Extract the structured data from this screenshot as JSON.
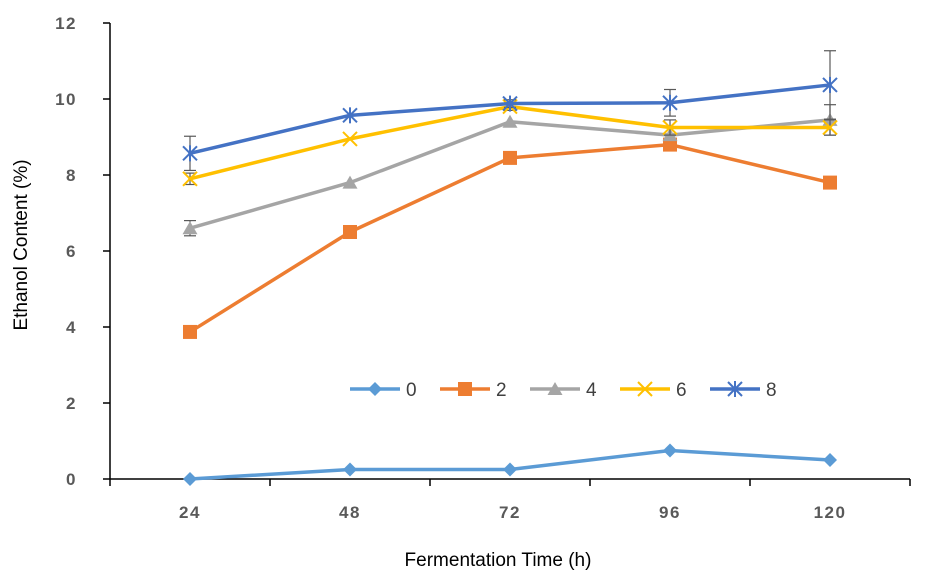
{
  "chart_data": {
    "type": "line",
    "xlabel": "Fermentation Time (h)",
    "ylabel": "Ethanol Content (%)",
    "categories": [
      "24",
      "48",
      "72",
      "96",
      "120"
    ],
    "yticks": [
      "0",
      "2",
      "4",
      "6",
      "8",
      "10",
      "12"
    ],
    "ylim": [
      0,
      12
    ],
    "grid": false,
    "legend_position": "center",
    "series": [
      {
        "name": "0",
        "color": "#5B9BD5",
        "marker": "diamond",
        "values": [
          0.0,
          0.25,
          0.25,
          0.75,
          0.5
        ],
        "errors": [
          0,
          0,
          0,
          0,
          0
        ]
      },
      {
        "name": "2",
        "color": "#ED7D31",
        "marker": "square",
        "values": [
          3.87,
          6.5,
          8.45,
          8.8,
          7.8
        ],
        "errors": [
          0,
          0,
          0,
          0,
          0
        ]
      },
      {
        "name": "4",
        "color": "#A5A5A5",
        "marker": "triangle",
        "values": [
          6.6,
          7.8,
          9.4,
          9.05,
          9.45
        ],
        "errors": [
          0.2,
          0,
          0,
          0,
          0.4
        ]
      },
      {
        "name": "6",
        "color": "#FFC000",
        "marker": "x",
        "values": [
          7.9,
          8.95,
          9.8,
          9.25,
          9.25
        ],
        "errors": [
          0.15,
          0,
          0.1,
          0.2,
          0.2
        ]
      },
      {
        "name": "8",
        "color": "#4472C4",
        "marker": "star",
        "values": [
          8.57,
          9.57,
          9.88,
          9.9,
          10.37
        ],
        "errors": [
          0.45,
          0,
          0.1,
          0.35,
          0.9
        ]
      }
    ]
  }
}
